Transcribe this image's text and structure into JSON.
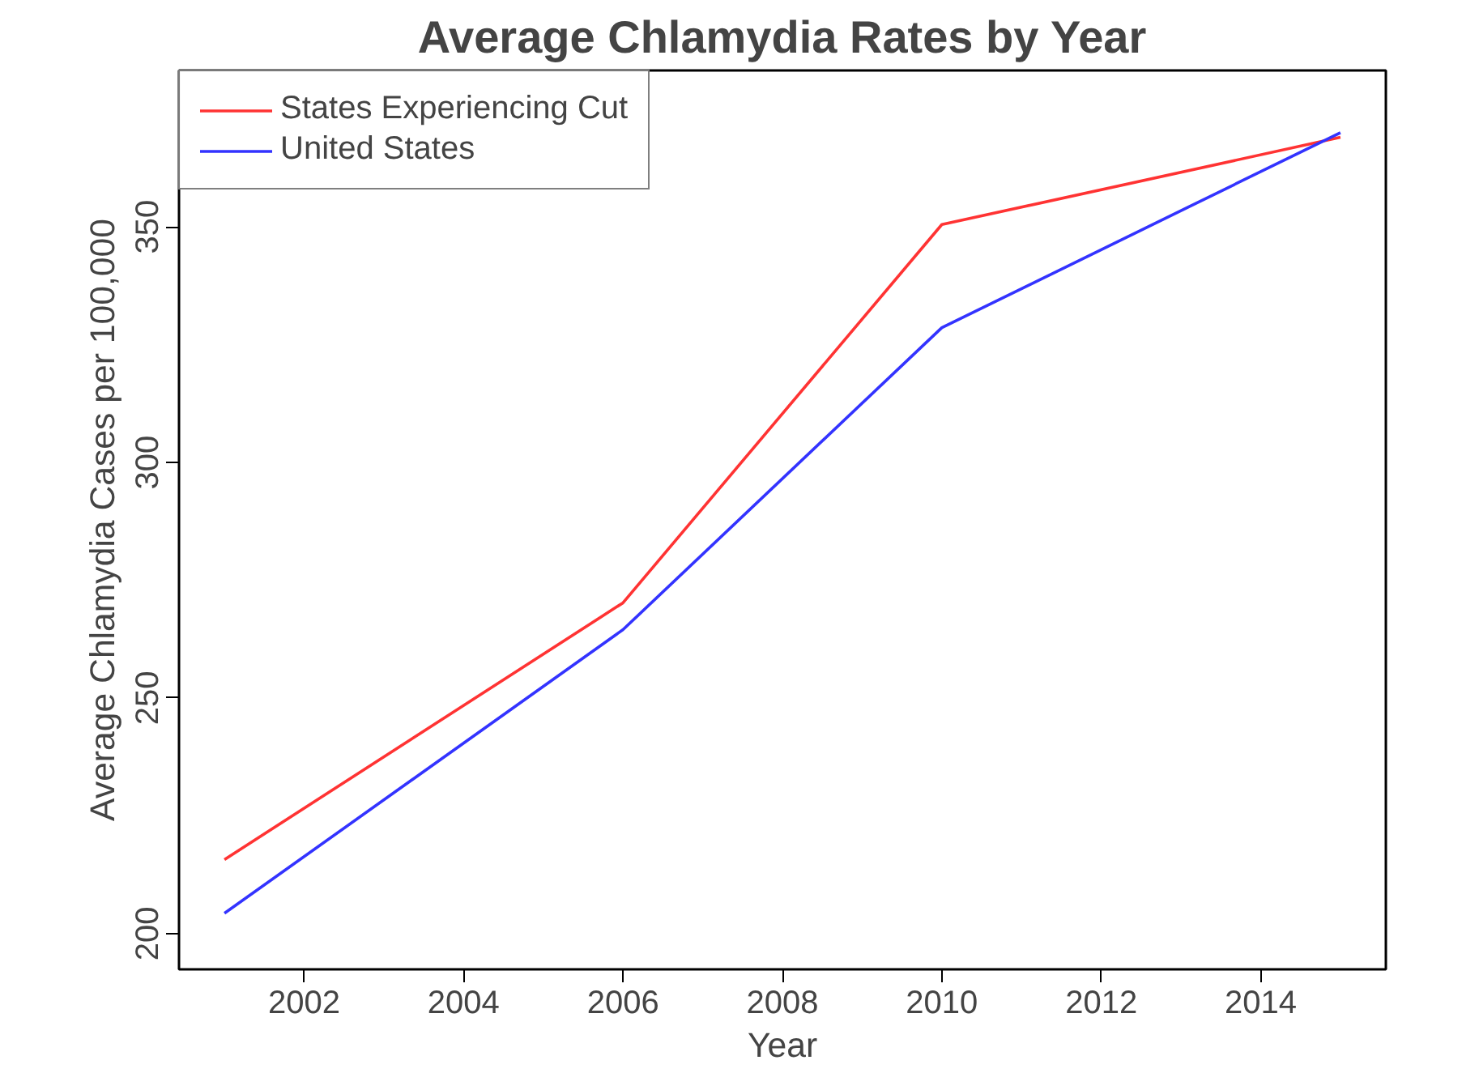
{
  "chart_data": {
    "type": "line",
    "title": "Average Chlamydia Rates by Year",
    "xlabel": "Year",
    "ylabel": "Average Chlamydia Cases per 100,000",
    "x": [
      2001,
      2006,
      2010,
      2015
    ],
    "series": [
      {
        "name": "States Experiencing Cut",
        "color": "#ff3333",
        "values": [
          215.7,
          270.2,
          350.5,
          369
        ]
      },
      {
        "name": "United States",
        "color": "#3333ff",
        "values": [
          204.3,
          264.5,
          328.6,
          370
        ]
      }
    ],
    "xlim": [
      2000.43,
      2015.57
    ],
    "ylim": [
      192.4,
      383.2
    ],
    "xticks": [
      2002,
      2004,
      2006,
      2008,
      2010,
      2012,
      2014
    ],
    "yticks": [
      200,
      250,
      300,
      350
    ],
    "grid": false,
    "legend": "top left",
    "marker": "none",
    "line_style": "solid"
  }
}
